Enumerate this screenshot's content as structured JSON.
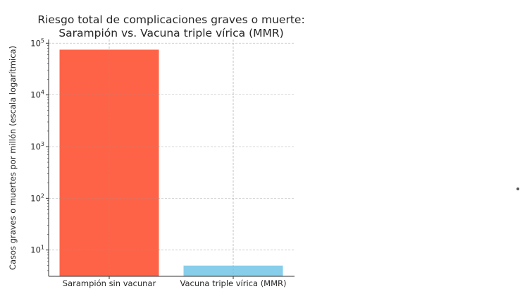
{
  "chart_data": {
    "type": "bar",
    "title": "Riesgo total de complicaciones graves o muerte:\nSarampión vs. Vacuna triple vírica (MMR)",
    "title_lines": [
      "Riesgo total de complicaciones graves o muerte:",
      "Sarampión vs. Vacuna triple vírica (MMR)"
    ],
    "xlabel": "",
    "ylabel": "Casos graves o muertes por millón (escala logarítmica)",
    "categories": [
      "Sarampión sin vacunar",
      "Vacuna triple vírica (MMR)"
    ],
    "values": [
      75000,
      5
    ],
    "colors": [
      "#ff6347",
      "#87ceeb"
    ],
    "yscale": "log",
    "ylim": [
      3.1,
      100000
    ],
    "yticks": [
      10,
      100,
      1000,
      10000,
      100000
    ],
    "ytick_labels": [
      {
        "base": "10",
        "exp": "1"
      },
      {
        "base": "10",
        "exp": "2"
      },
      {
        "base": "10",
        "exp": "3"
      },
      {
        "base": "10",
        "exp": "4"
      },
      {
        "base": "10",
        "exp": "5"
      }
    ],
    "grid": true,
    "legend": "none"
  }
}
